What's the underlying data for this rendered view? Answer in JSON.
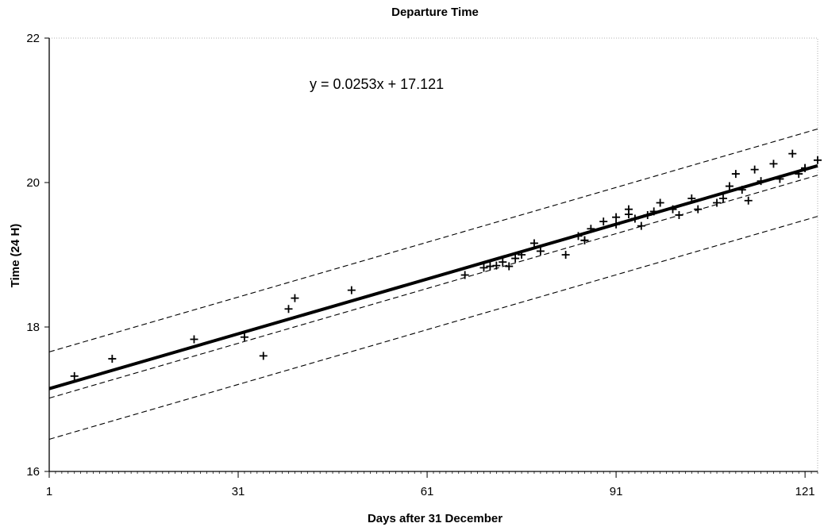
{
  "chart_data": {
    "type": "scatter",
    "title": "Departure Time",
    "xlabel": "Days after 31 December",
    "ylabel": "Time (24 H)",
    "xlim": [
      1,
      123
    ],
    "ylim": [
      16,
      22
    ],
    "xticks": [
      1,
      31,
      61,
      91,
      121
    ],
    "yticks": [
      16,
      18,
      20,
      22
    ],
    "grid": false,
    "legend": "none",
    "annotation": "y = 0.0253x + 17.121",
    "points": {
      "x": [
        5,
        11,
        24,
        32,
        35,
        39,
        40,
        49,
        67,
        70,
        71,
        72,
        73,
        74,
        75,
        76,
        78,
        79,
        83,
        85,
        86,
        86,
        87,
        89,
        91,
        91,
        93,
        93,
        94,
        95,
        96,
        97,
        98,
        100,
        101,
        103,
        104,
        107,
        108,
        109,
        110,
        111,
        112,
        113,
        114,
        116,
        117,
        119,
        120,
        121,
        121,
        123
      ],
      "y": [
        17.32,
        17.56,
        17.83,
        17.86,
        17.6,
        18.25,
        18.4,
        18.51,
        18.72,
        18.82,
        18.84,
        18.85,
        18.9,
        18.84,
        18.95,
        19.0,
        19.16,
        19.05,
        19.0,
        19.26,
        19.2,
        19.2,
        19.36,
        19.46,
        19.52,
        19.42,
        19.56,
        19.63,
        19.5,
        19.4,
        19.55,
        19.6,
        19.72,
        19.63,
        19.55,
        19.78,
        19.63,
        19.72,
        19.78,
        19.95,
        20.12,
        19.9,
        19.75,
        20.18,
        20.02,
        20.26,
        20.05,
        20.4,
        20.12,
        20.2,
        20.2,
        20.31
      ]
    },
    "series": [
      {
        "kind": "regression",
        "slope": 0.0253,
        "intercept": 17.121,
        "style": "solid"
      },
      {
        "kind": "upper-outer-bound",
        "slope": 0.0253,
        "intercept": 17.63,
        "style": "dashed"
      },
      {
        "kind": "lower-inner-bound",
        "slope": 0.0253,
        "intercept": 16.99,
        "style": "dashed"
      },
      {
        "kind": "lower-outer-bound",
        "slope": 0.0253,
        "intercept": 16.42,
        "style": "dashed"
      }
    ],
    "colors": {
      "marks": "#000000",
      "background": "#ffffff"
    }
  }
}
